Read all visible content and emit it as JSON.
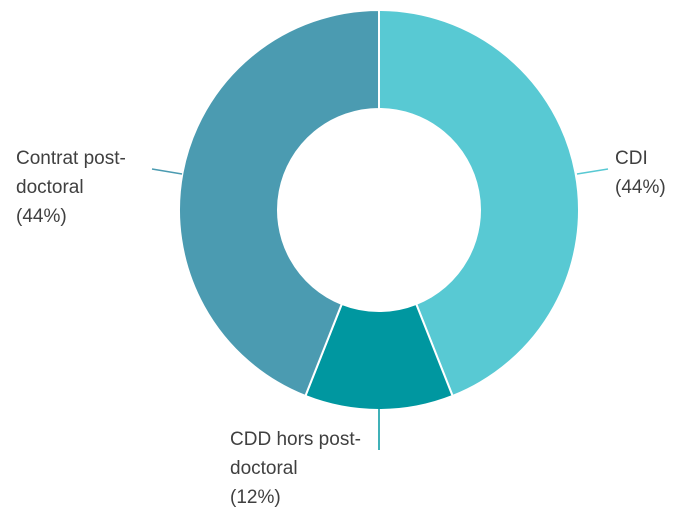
{
  "chart_data": {
    "type": "donut",
    "title": "",
    "legend": "none",
    "start_angle_deg": 0,
    "direction": "clockwise",
    "slices": [
      {
        "name": "CDI",
        "label_lines": [
          "CDI",
          "(44%)"
        ],
        "value": 44,
        "color": "#58c9d3",
        "leader_color": "#58c9d3"
      },
      {
        "name": "CDD hors post-doctoral",
        "label_lines": [
          "CDD hors post-",
          "doctoral",
          "(12%)"
        ],
        "value": 12,
        "color": "#0097a0",
        "leader_color": "#0097a0"
      },
      {
        "name": "Contrat post-doctoral",
        "label_lines": [
          "Contrat post-",
          "doctoral",
          "(44%)"
        ],
        "value": 44,
        "color": "#4b9bb1",
        "leader_color": "#4b9bb1"
      }
    ]
  }
}
